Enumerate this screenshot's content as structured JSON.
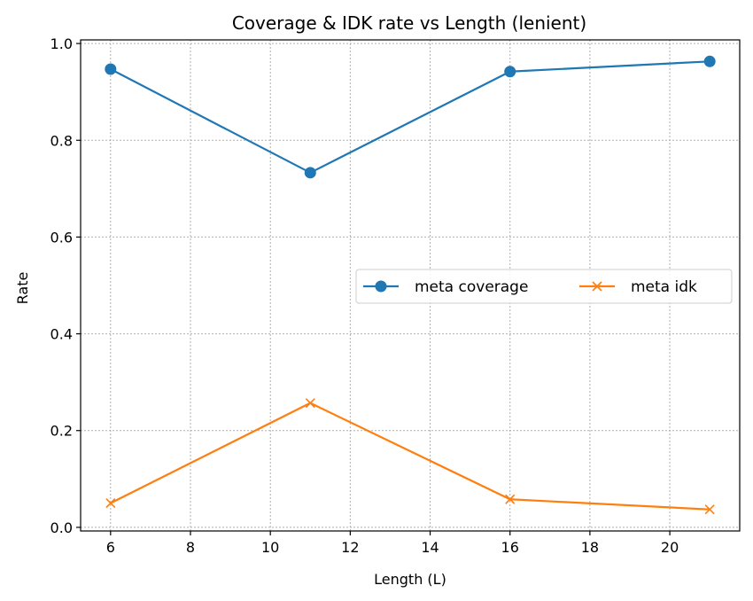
{
  "chart_data": {
    "type": "line",
    "title": "Coverage & IDK rate vs Length (lenient)",
    "xlabel": "Length (L)",
    "ylabel": "Rate",
    "x": [
      6,
      11,
      16,
      21
    ],
    "xlim": [
      5.25,
      21.75
    ],
    "ylim": [
      -0.0075,
      1.0075
    ],
    "xticks": [
      6,
      8,
      10,
      12,
      14,
      16,
      18,
      20
    ],
    "yticks": [
      0.0,
      0.2,
      0.4,
      0.6,
      0.8,
      1.0
    ],
    "xtick_labels": [
      "6",
      "8",
      "10",
      "12",
      "14",
      "16",
      "18",
      "20"
    ],
    "ytick_labels": [
      "0.0",
      "0.2",
      "0.4",
      "0.6",
      "0.8",
      "1.0"
    ],
    "grid": true,
    "legend_position": "center-right",
    "series": [
      {
        "name": "meta coverage",
        "values": [
          0.947,
          0.733,
          0.942,
          0.963
        ],
        "color": "#1f77b4",
        "marker": "circle"
      },
      {
        "name": "meta idk",
        "values": [
          0.05,
          0.257,
          0.058,
          0.037
        ],
        "color": "#ff7f0e",
        "marker": "x"
      }
    ]
  }
}
